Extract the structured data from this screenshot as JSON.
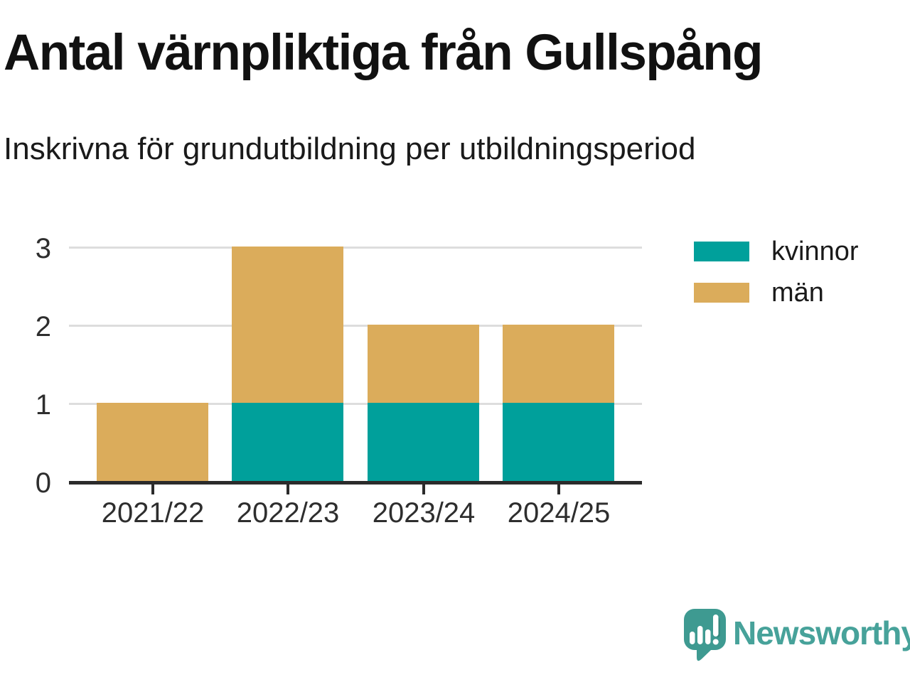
{
  "title": "Antal värnpliktiga från Gullspång",
  "subtitle": "Inskrivna för grundutbildning per utbildningsperiod",
  "legend": {
    "items": [
      {
        "label": "kvinnor",
        "color": "#00a09b"
      },
      {
        "label": "män",
        "color": "#dbac5b"
      }
    ]
  },
  "chart_data": {
    "type": "bar",
    "stacked": true,
    "categories": [
      "2021/22",
      "2022/23",
      "2023/24",
      "2024/25"
    ],
    "series": [
      {
        "name": "kvinnor",
        "color": "#00a09b",
        "values": [
          0,
          1,
          1,
          1
        ]
      },
      {
        "name": "män",
        "color": "#dbac5b",
        "values": [
          1,
          2,
          1,
          1
        ]
      }
    ],
    "totals": [
      1,
      3,
      2,
      2
    ],
    "title": "Antal värnpliktiga från Gullspång",
    "subtitle": "Inskrivna för grundutbildning per utbildningsperiod",
    "xlabel": "",
    "ylabel": "",
    "ylim": [
      0,
      3
    ],
    "yticks": [
      0,
      1,
      2,
      3
    ],
    "grid": "horizontal",
    "gridline_color": "#dddddd",
    "axis_color": "#2b2b2b",
    "legend_position": "right-of-plot-top"
  },
  "footer": {
    "brand": "Newsworthy",
    "brand_color": "#47a29a",
    "logo_icon": "newsworthy-speech-bubble-bar-chart-icon",
    "logo_bubble_color": "#3e9a91"
  }
}
